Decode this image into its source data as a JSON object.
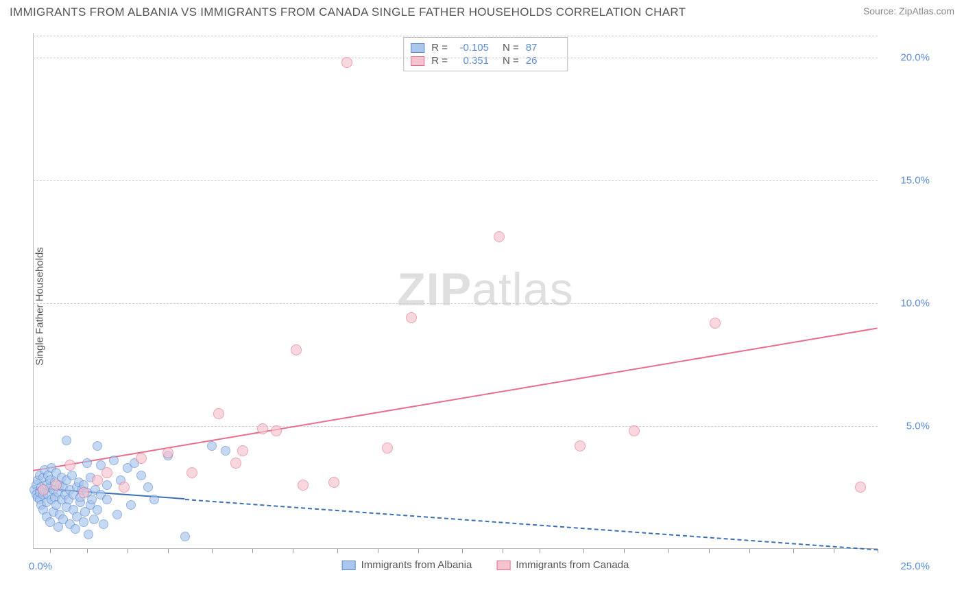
{
  "title": "IMMIGRANTS FROM ALBANIA VS IMMIGRANTS FROM CANADA SINGLE FATHER HOUSEHOLDS CORRELATION CHART",
  "source_label": "Source: ",
  "source_name": "ZipAtlas.com",
  "watermark_zip": "ZIP",
  "watermark_atlas": "atlas",
  "y_axis_label": "Single Father Households",
  "chart": {
    "type": "scatter",
    "xlim": [
      0,
      25
    ],
    "ylim": [
      0,
      21
    ],
    "x_origin_label": "0.0%",
    "x_end_label": "25.0%",
    "y_ticks": [
      {
        "value": 5,
        "label": "5.0%"
      },
      {
        "value": 10,
        "label": "10.0%"
      },
      {
        "value": 15,
        "label": "15.0%"
      },
      {
        "value": 20,
        "label": "20.0%"
      }
    ],
    "x_tick_positions": [
      0.5,
      1.6,
      2.8,
      4.0,
      5.3,
      6.5,
      7.7,
      9.0,
      10.2,
      11.4,
      12.7,
      13.9,
      15.0,
      16.3,
      17.5,
      18.8,
      20.0,
      21.2,
      22.5,
      23.7,
      25.0
    ],
    "background_color": "#ffffff",
    "grid_color": "#cccccc",
    "axis_color": "#bbbbbb",
    "label_color": "#5b8bd4",
    "series": [
      {
        "id": "albania",
        "legend_label": "Immigrants from Albania",
        "fill": "#a9c6ec",
        "stroke": "#5b8bd4",
        "opacity": 0.65,
        "radius": 7,
        "R_label": "R = ",
        "R_value": "-0.105",
        "N_label": "N = ",
        "N_value": "87",
        "trend": {
          "y_start": 2.5,
          "y_end": 0.0,
          "color": "#3b6fb5",
          "dashed_after_x": 4.5
        },
        "points": [
          [
            0.05,
            2.4
          ],
          [
            0.1,
            2.2
          ],
          [
            0.1,
            2.6
          ],
          [
            0.15,
            2.1
          ],
          [
            0.15,
            2.8
          ],
          [
            0.2,
            2.0
          ],
          [
            0.2,
            2.3
          ],
          [
            0.2,
            3.0
          ],
          [
            0.25,
            1.8
          ],
          [
            0.25,
            2.5
          ],
          [
            0.3,
            2.2
          ],
          [
            0.3,
            2.9
          ],
          [
            0.3,
            1.6
          ],
          [
            0.35,
            2.4
          ],
          [
            0.35,
            3.2
          ],
          [
            0.4,
            1.9
          ],
          [
            0.4,
            2.6
          ],
          [
            0.4,
            1.3
          ],
          [
            0.45,
            2.2
          ],
          [
            0.45,
            3.0
          ],
          [
            0.5,
            2.5
          ],
          [
            0.5,
            1.1
          ],
          [
            0.5,
            2.8
          ],
          [
            0.55,
            2.0
          ],
          [
            0.55,
            3.3
          ],
          [
            0.6,
            2.4
          ],
          [
            0.6,
            1.5
          ],
          [
            0.65,
            2.7
          ],
          [
            0.65,
            2.1
          ],
          [
            0.7,
            1.8
          ],
          [
            0.7,
            3.1
          ],
          [
            0.75,
            2.3
          ],
          [
            0.75,
            0.9
          ],
          [
            0.8,
            2.6
          ],
          [
            0.8,
            1.4
          ],
          [
            0.85,
            2.9
          ],
          [
            0.85,
            2.0
          ],
          [
            0.9,
            1.2
          ],
          [
            0.9,
            2.5
          ],
          [
            0.95,
            2.2
          ],
          [
            1.0,
            1.7
          ],
          [
            1.0,
            2.8
          ],
          [
            1.0,
            4.4
          ],
          [
            1.05,
            2.0
          ],
          [
            1.1,
            1.0
          ],
          [
            1.1,
            2.4
          ],
          [
            1.15,
            3.0
          ],
          [
            1.2,
            1.6
          ],
          [
            1.2,
            2.2
          ],
          [
            1.25,
            0.8
          ],
          [
            1.3,
            2.5
          ],
          [
            1.3,
            1.3
          ],
          [
            1.35,
            2.7
          ],
          [
            1.4,
            1.9
          ],
          [
            1.4,
            2.1
          ],
          [
            1.45,
            2.4
          ],
          [
            1.5,
            1.1
          ],
          [
            1.5,
            2.6
          ],
          [
            1.55,
            1.5
          ],
          [
            1.6,
            2.3
          ],
          [
            1.6,
            3.5
          ],
          [
            1.65,
            0.6
          ],
          [
            1.7,
            1.8
          ],
          [
            1.7,
            2.9
          ],
          [
            1.75,
            2.0
          ],
          [
            1.8,
            1.2
          ],
          [
            1.85,
            2.4
          ],
          [
            1.9,
            1.6
          ],
          [
            2.0,
            2.2
          ],
          [
            2.0,
            3.4
          ],
          [
            2.1,
            1.0
          ],
          [
            2.2,
            2.6
          ],
          [
            2.2,
            2.0
          ],
          [
            2.4,
            3.6
          ],
          [
            2.5,
            1.4
          ],
          [
            2.6,
            2.8
          ],
          [
            2.8,
            3.3
          ],
          [
            2.9,
            1.8
          ],
          [
            3.0,
            3.5
          ],
          [
            3.2,
            3.0
          ],
          [
            3.4,
            2.5
          ],
          [
            3.6,
            2.0
          ],
          [
            4.0,
            3.8
          ],
          [
            4.5,
            0.5
          ],
          [
            5.3,
            4.2
          ],
          [
            5.7,
            4.0
          ],
          [
            1.9,
            4.2
          ]
        ]
      },
      {
        "id": "canada",
        "legend_label": "Immigrants from Canada",
        "fill": "#f5c3cf",
        "stroke": "#e76f8c",
        "opacity": 0.65,
        "radius": 8,
        "R_label": "R = ",
        "R_value": "0.351",
        "N_label": "N = ",
        "N_value": "26",
        "trend": {
          "y_start": 3.2,
          "y_end": 9.0,
          "color": "#e76f8c",
          "dashed_after_x": 25
        },
        "points": [
          [
            0.3,
            2.4
          ],
          [
            0.7,
            2.6
          ],
          [
            1.1,
            3.4
          ],
          [
            1.5,
            2.3
          ],
          [
            1.9,
            2.8
          ],
          [
            2.2,
            3.1
          ],
          [
            2.7,
            2.5
          ],
          [
            3.2,
            3.7
          ],
          [
            4.0,
            3.9
          ],
          [
            4.7,
            3.1
          ],
          [
            5.5,
            5.5
          ],
          [
            6.2,
            4.0
          ],
          [
            6.8,
            4.9
          ],
          [
            7.2,
            4.8
          ],
          [
            7.8,
            8.1
          ],
          [
            8.0,
            2.6
          ],
          [
            8.9,
            2.7
          ],
          [
            9.3,
            19.8
          ],
          [
            10.5,
            4.1
          ],
          [
            11.2,
            9.4
          ],
          [
            13.8,
            12.7
          ],
          [
            16.2,
            4.2
          ],
          [
            17.8,
            4.8
          ],
          [
            20.2,
            9.2
          ],
          [
            24.5,
            2.5
          ],
          [
            6.0,
            3.5
          ]
        ]
      }
    ]
  },
  "legend_top": {
    "border_color": "#bbbbbb"
  }
}
